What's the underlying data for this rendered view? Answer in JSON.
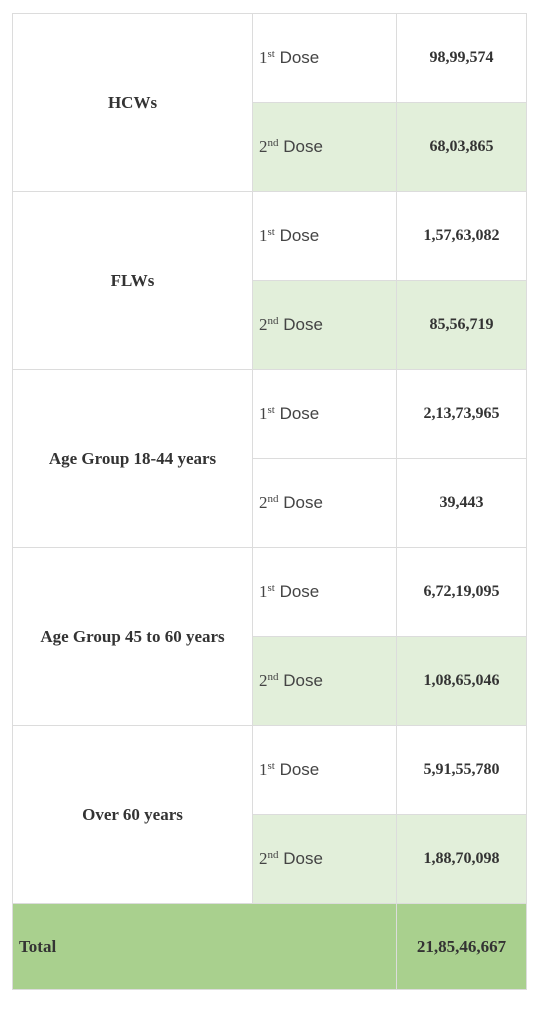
{
  "table": {
    "groups": [
      {
        "label": "HCWs",
        "doses": [
          {
            "num": "1",
            "sup": "st",
            "word": " Dose",
            "value": "98,99,574",
            "shaded": false
          },
          {
            "num": "2",
            "sup": "nd",
            "word": " Dose",
            "value": "68,03,865",
            "shaded": true
          }
        ]
      },
      {
        "label": "FLWs",
        "doses": [
          {
            "num": "1",
            "sup": "st",
            "word": " Dose",
            "value": "1,57,63,082",
            "shaded": false
          },
          {
            "num": "2",
            "sup": "nd",
            "word": " Dose",
            "value": "85,56,719",
            "shaded": true
          }
        ]
      },
      {
        "label": "Age Group 18-44 years",
        "doses": [
          {
            "num": "1",
            "sup": "st",
            "word": " Dose",
            "value": "2,13,73,965",
            "shaded": false
          },
          {
            "num": "2",
            "sup": "nd",
            "word": " Dose",
            "value": "39,443",
            "shaded": false
          }
        ]
      },
      {
        "label": "Age Group 45 to 60 years",
        "doses": [
          {
            "num": "1",
            "sup": "st",
            "word": " Dose",
            "value": "6,72,19,095",
            "shaded": false
          },
          {
            "num": "2",
            "sup": "nd",
            "word": " Dose",
            "value": "1,08,65,046",
            "shaded": true
          }
        ]
      },
      {
        "label": "Over 60 years",
        "doses": [
          {
            "num": "1",
            "sup": "st",
            "word": " Dose",
            "value": "5,91,55,780",
            "shaded": false
          },
          {
            "num": "2",
            "sup": "nd",
            "word": " Dose",
            "value": "1,88,70,098",
            "shaded": true
          }
        ]
      }
    ],
    "total": {
      "label": "Total",
      "value": "21,85,46,667"
    }
  },
  "colors": {
    "shaded_row": "#e2efda",
    "total_row": "#a9d08e",
    "border": "#dcdcdc"
  }
}
